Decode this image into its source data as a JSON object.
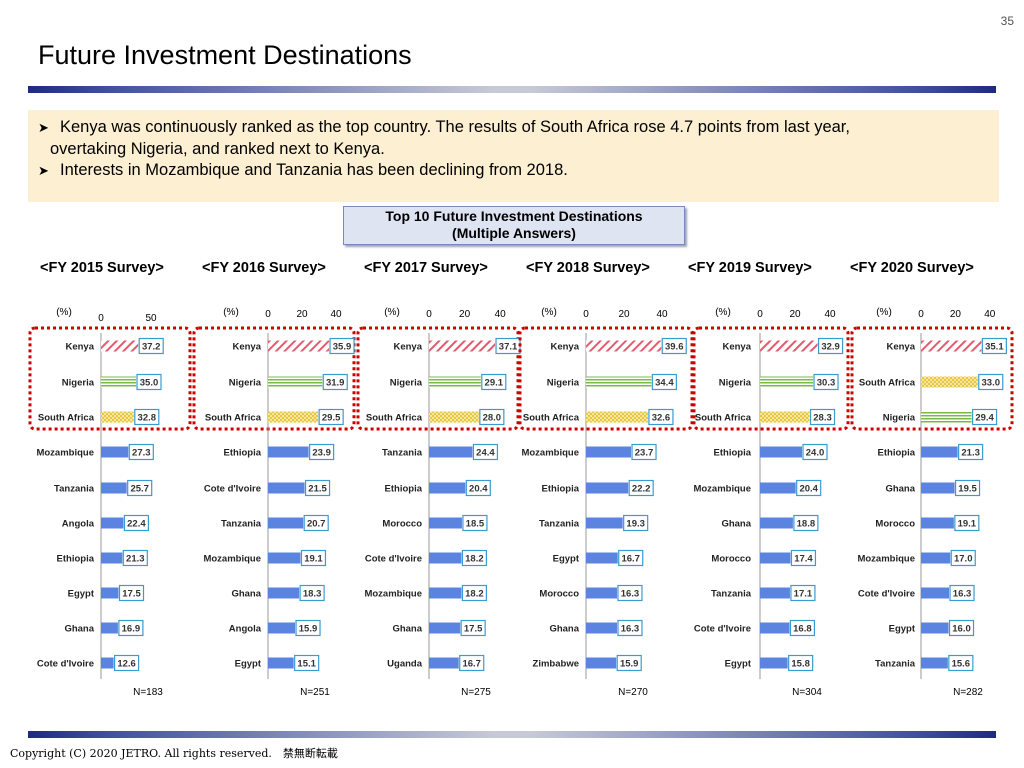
{
  "page_number": "35",
  "title": "Future Investment Destinations",
  "notes": [
    {
      "bullet": "arrow-bullet-icon",
      "line1": "Kenya was continuously ranked as the top country. The results of South Africa rose 4.7 points from last year,",
      "line2": "overtaking Nigeria, and ranked next to Kenya."
    },
    {
      "bullet": "arrow-bullet-icon",
      "line1": "Interests in Mozambique and Tanzania has been declining from 2018."
    }
  ],
  "chart_heading": {
    "line1": "Top 10 Future Investment Destinations",
    "line2": "(Multiple Answers)"
  },
  "copyright": "Copyright (C) 2020 JETRO.  All rights reserved.　禁無断転載",
  "colors": {
    "kenya": "#e35a6c",
    "nigeria": "#79b84a",
    "south_africa": "#e8c73a",
    "other": "#5b84e0",
    "highlight": "#cc0000",
    "label_border": "#3a9bd0"
  },
  "chart_data": [
    {
      "type": "bar",
      "survey": "<FY 2015 Survey>",
      "unit": "(%)",
      "ticks": [
        0,
        50
      ],
      "xlim": [
        0,
        50
      ],
      "n": "N=183",
      "categories": [
        "Kenya",
        "Nigeria",
        "South Africa",
        "Mozambique",
        "Tanzania",
        "Angola",
        "Ethiopia",
        "Egypt",
        "Ghana",
        "Cote d'Ivoire"
      ],
      "values": [
        37.2,
        35.0,
        32.8,
        27.3,
        25.7,
        22.4,
        21.3,
        17.5,
        16.9,
        12.6
      ]
    },
    {
      "type": "bar",
      "survey": "<FY 2016 Survey>",
      "unit": "(%)",
      "ticks": [
        0,
        20,
        40
      ],
      "xlim": [
        0,
        40
      ],
      "n": "N=251",
      "categories": [
        "Kenya",
        "Nigeria",
        "South Africa",
        "Ethiopia",
        "Cote d'Ivoire",
        "Tanzania",
        "Mozambique",
        "Ghana",
        "Angola",
        "Egypt"
      ],
      "values": [
        35.9,
        31.9,
        29.5,
        23.9,
        21.5,
        20.7,
        19.1,
        18.3,
        15.9,
        15.1
      ]
    },
    {
      "type": "bar",
      "survey": "<FY 2017 Survey>",
      "unit": "(%)",
      "ticks": [
        0,
        20,
        40
      ],
      "xlim": [
        0,
        40
      ],
      "n": "N=275",
      "categories": [
        "Kenya",
        "Nigeria",
        "South Africa",
        "Tanzania",
        "Ethiopia",
        "Morocco",
        "Cote d'Ivoire",
        "Mozambique",
        "Ghana",
        "Uganda"
      ],
      "values": [
        37.1,
        29.1,
        28.0,
        24.4,
        20.4,
        18.5,
        18.2,
        18.2,
        17.5,
        16.7
      ]
    },
    {
      "type": "bar",
      "survey": "<FY 2018 Survey>",
      "unit": "(%)",
      "ticks": [
        0,
        20,
        40
      ],
      "xlim": [
        0,
        40
      ],
      "n": "N=270",
      "categories": [
        "Kenya",
        "Nigeria",
        "South Africa",
        "Mozambique",
        "Ethiopia",
        "Tanzania",
        "Egypt",
        "Morocco",
        "Ghana",
        "Zimbabwe"
      ],
      "values": [
        39.6,
        34.4,
        32.6,
        23.7,
        22.2,
        19.3,
        16.7,
        16.3,
        16.3,
        15.9
      ]
    },
    {
      "type": "bar",
      "survey": "<FY 2019 Survey>",
      "unit": "(%)",
      "ticks": [
        0,
        20,
        40
      ],
      "xlim": [
        0,
        40
      ],
      "n": "N=304",
      "categories": [
        "Kenya",
        "Nigeria",
        "South Africa",
        "Ethiopia",
        "Mozambique",
        "Ghana",
        "Morocco",
        "Tanzania",
        "Cote d'Ivoire",
        "Egypt"
      ],
      "values": [
        32.9,
        30.3,
        28.3,
        24.0,
        20.4,
        18.8,
        17.4,
        17.1,
        16.8,
        15.8
      ]
    },
    {
      "type": "bar",
      "survey": "<FY 2020 Survey>",
      "unit": "(%)",
      "ticks": [
        0,
        20,
        40
      ],
      "xlim": [
        0,
        40
      ],
      "n": "N=282",
      "categories": [
        "Kenya",
        "South Africa",
        "Nigeria",
        "Ethiopia",
        "Ghana",
        "Morocco",
        "Mozambique",
        "Cote d'Ivoire",
        "Egypt",
        "Tanzania"
      ],
      "values": [
        35.1,
        33.0,
        29.4,
        21.3,
        19.5,
        19.1,
        17.0,
        16.3,
        16.0,
        15.6
      ]
    }
  ]
}
